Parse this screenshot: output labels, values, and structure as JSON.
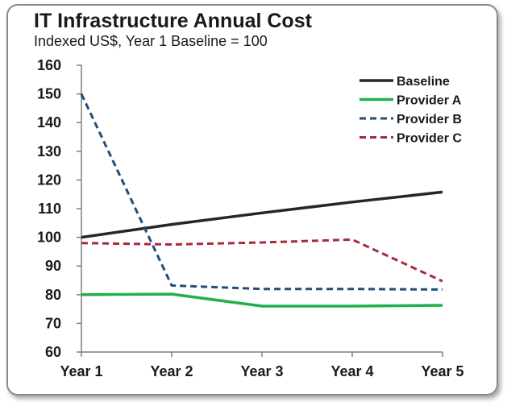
{
  "chart_data": {
    "type": "line",
    "title": "IT Infrastructure Annual Cost",
    "subtitle": "Indexed US$, Year 1 Baseline = 100",
    "xlabel": "",
    "ylabel": "",
    "categories": [
      "Year 1",
      "Year 2",
      "Year 3",
      "Year 4",
      "Year 5"
    ],
    "ylim": [
      60,
      160
    ],
    "yticks": [
      60,
      70,
      80,
      90,
      100,
      110,
      120,
      130,
      140,
      150,
      160
    ],
    "grid": false,
    "legend_position": "top-right",
    "series": [
      {
        "name": "Baseline",
        "color": "#262626",
        "style": "solid",
        "values": [
          100,
          104.5,
          108.5,
          112.3,
          115.8
        ]
      },
      {
        "name": "Provider A",
        "color": "#22b04a",
        "style": "solid",
        "values": [
          80,
          80.2,
          76,
          76,
          76.3
        ]
      },
      {
        "name": "Provider B",
        "color": "#1f4e79",
        "style": "dashed",
        "values": [
          150,
          83.2,
          82,
          82,
          81.8
        ]
      },
      {
        "name": "Provider C",
        "color": "#a52a3c",
        "style": "dashed",
        "values": [
          98,
          97.5,
          98.2,
          99.2,
          84.7
        ]
      }
    ]
  }
}
